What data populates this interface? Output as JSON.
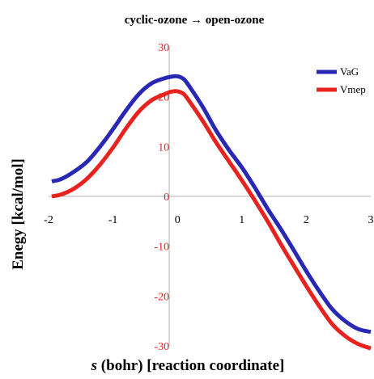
{
  "chart_data": {
    "type": "line",
    "title": "cyclic-ozone → open-ozone",
    "ylabel": "Enegy [kcal/mol]",
    "xlabel_var": "s",
    "xlabel_rest": " (bohr) [reaction coordinate]",
    "xlim": [
      -2,
      3
    ],
    "ylim": [
      -30,
      30
    ],
    "x_ticks": [
      "-2",
      "-1",
      "0",
      "1",
      "2",
      "3"
    ],
    "y_ticks": [
      "30",
      "20",
      "10",
      "0",
      "-10",
      "-20",
      "-30"
    ],
    "grid": false,
    "legend_position": "top-right",
    "series": [
      {
        "name": "VaG",
        "color": "#2828b4",
        "x": [
          -1.95,
          -1.8,
          -1.6,
          -1.4,
          -1.2,
          -1.0,
          -0.8,
          -0.6,
          -0.4,
          -0.2,
          -0.1,
          0.0,
          0.1,
          0.2,
          0.4,
          0.6,
          0.8,
          1.0,
          1.2,
          1.4,
          1.6,
          1.8,
          2.0,
          2.2,
          2.4,
          2.6,
          2.8,
          3.0
        ],
        "y": [
          3.0,
          3.5,
          5.0,
          7.0,
          10.0,
          13.5,
          17.2,
          20.5,
          22.7,
          23.7,
          24.0,
          24.1,
          23.5,
          21.8,
          17.8,
          13.2,
          9.3,
          5.8,
          1.8,
          -2.5,
          -6.5,
          -10.7,
          -15.0,
          -19.0,
          -22.6,
          -25.0,
          -26.6,
          -27.2
        ]
      },
      {
        "name": "Vmep",
        "color": "#e8231f",
        "x": [
          -1.95,
          -1.8,
          -1.6,
          -1.4,
          -1.2,
          -1.0,
          -0.8,
          -0.6,
          -0.4,
          -0.2,
          -0.1,
          0.0,
          0.1,
          0.2,
          0.4,
          0.6,
          0.8,
          1.0,
          1.2,
          1.4,
          1.6,
          1.8,
          2.0,
          2.2,
          2.4,
          2.6,
          2.8,
          3.0
        ],
        "y": [
          0.0,
          0.4,
          1.6,
          3.6,
          6.4,
          9.8,
          13.6,
          17.0,
          19.3,
          20.5,
          21.0,
          21.1,
          20.5,
          18.8,
          15.0,
          10.8,
          7.0,
          3.2,
          -0.8,
          -5.0,
          -9.5,
          -13.8,
          -18.0,
          -22.0,
          -25.6,
          -28.0,
          -29.6,
          -30.5
        ]
      }
    ]
  }
}
